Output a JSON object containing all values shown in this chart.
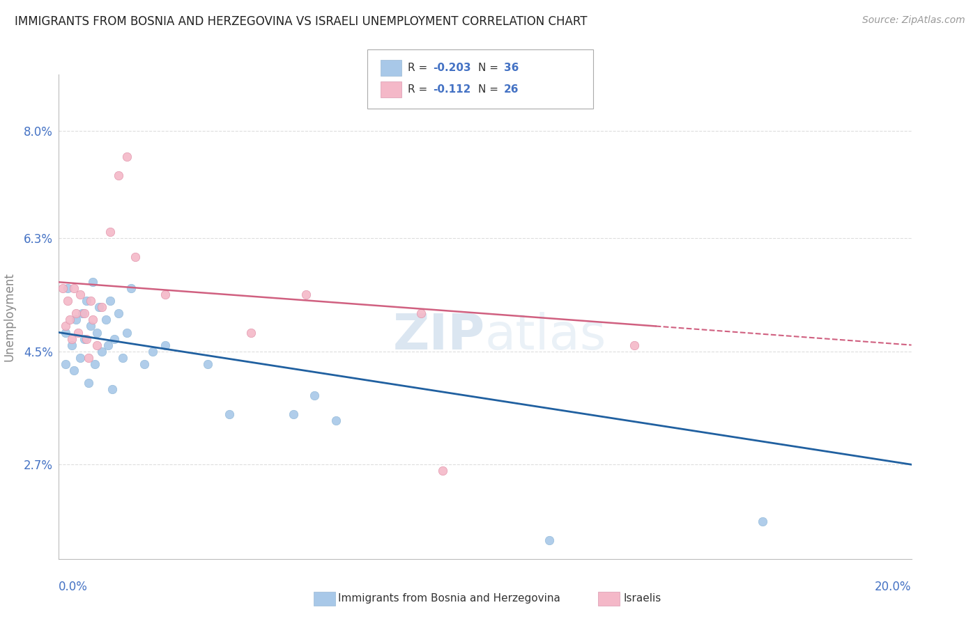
{
  "title": "IMMIGRANTS FROM BOSNIA AND HERZEGOVINA VS ISRAELI UNEMPLOYMENT CORRELATION CHART",
  "source": "Source: ZipAtlas.com",
  "ylabel": "Unemployment",
  "y_ticks": [
    2.7,
    4.5,
    6.3,
    8.0
  ],
  "y_tick_labels": [
    "2.7%",
    "4.5%",
    "6.3%",
    "8.0%"
  ],
  "x_min": 0.0,
  "x_max": 20.0,
  "y_min": 1.2,
  "y_max": 8.9,
  "blue_color": "#a8c8e8",
  "pink_color": "#f4b8c8",
  "blue_trend_color": "#2060a0",
  "pink_trend_color": "#d06080",
  "legend_text_color": "#4472c4",
  "axis_label_color": "#4472c4",
  "ylabel_color": "#888888",
  "grid_color": "#dddddd",
  "watermark_color": "#ccdcec",
  "background_color": "#ffffff",
  "blue_x": [
    0.15,
    0.15,
    0.2,
    0.3,
    0.35,
    0.4,
    0.5,
    0.55,
    0.6,
    0.65,
    0.7,
    0.75,
    0.8,
    0.85,
    0.9,
    0.95,
    1.0,
    1.1,
    1.15,
    1.2,
    1.25,
    1.3,
    1.4,
    1.5,
    1.6,
    1.7,
    2.0,
    2.2,
    2.5,
    3.5,
    4.0,
    5.5,
    6.0,
    6.5,
    11.5,
    16.5
  ],
  "blue_y": [
    4.8,
    4.3,
    5.5,
    4.6,
    4.2,
    5.0,
    4.4,
    5.1,
    4.7,
    5.3,
    4.0,
    4.9,
    5.6,
    4.3,
    4.8,
    5.2,
    4.5,
    5.0,
    4.6,
    5.3,
    3.9,
    4.7,
    5.1,
    4.4,
    4.8,
    5.5,
    4.3,
    4.5,
    4.6,
    4.3,
    3.5,
    3.5,
    3.8,
    3.4,
    1.5,
    1.8
  ],
  "pink_x": [
    0.1,
    0.15,
    0.2,
    0.25,
    0.3,
    0.35,
    0.4,
    0.45,
    0.5,
    0.6,
    0.65,
    0.7,
    0.75,
    0.8,
    0.9,
    1.0,
    1.2,
    1.4,
    1.6,
    1.8,
    2.5,
    4.5,
    5.8,
    8.5,
    9.0,
    13.5
  ],
  "pink_y": [
    5.5,
    4.9,
    5.3,
    5.0,
    4.7,
    5.5,
    5.1,
    4.8,
    5.4,
    5.1,
    4.7,
    4.4,
    5.3,
    5.0,
    4.6,
    5.2,
    6.4,
    7.3,
    7.6,
    6.0,
    5.4,
    4.8,
    5.4,
    5.1,
    2.6,
    4.6
  ],
  "blue_trend_x0": 0.0,
  "blue_trend_x1": 20.0,
  "blue_trend_y0": 4.8,
  "blue_trend_y1": 2.7,
  "pink_trend_x0": 0.0,
  "pink_trend_x1": 20.0,
  "pink_trend_y0": 5.6,
  "pink_trend_y1": 4.6
}
